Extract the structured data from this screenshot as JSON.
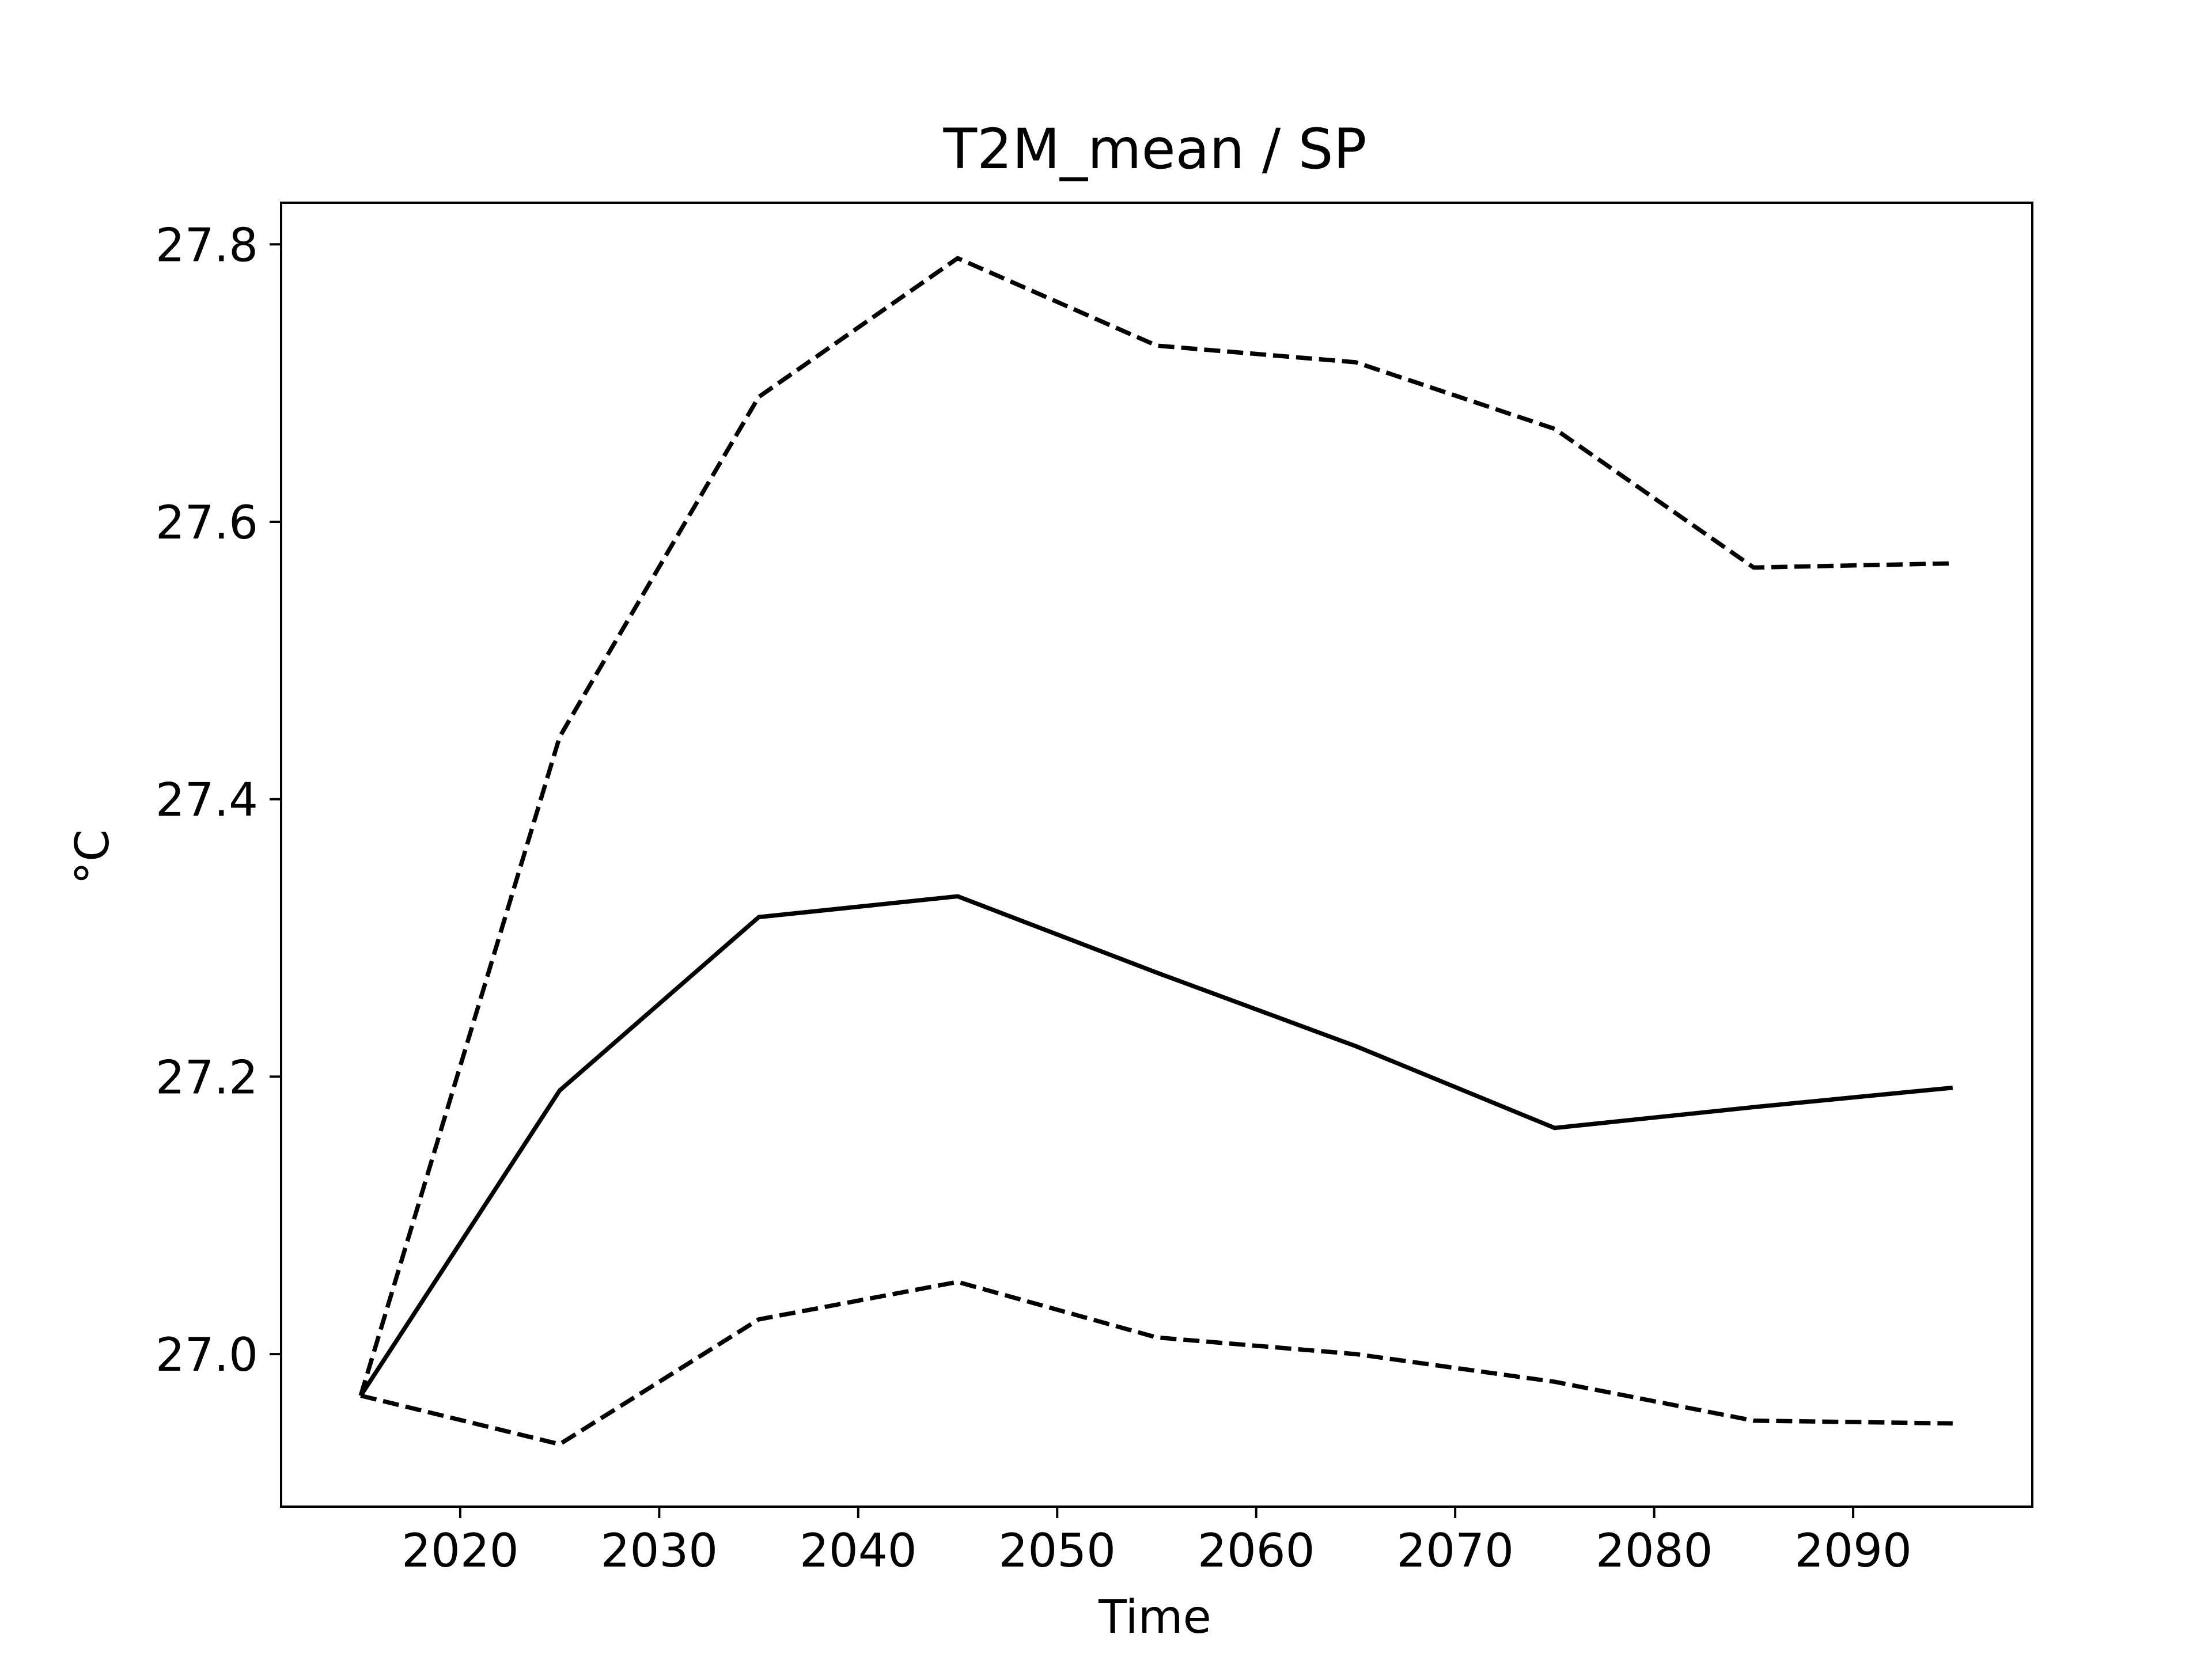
{
  "chart_data": {
    "type": "line",
    "title": "T2M_mean / SP",
    "xlabel": "Time",
    "ylabel": "°C",
    "xlim": [
      2011,
      2099
    ],
    "ylim": [
      26.89,
      27.83
    ],
    "xticks": [
      2020,
      2030,
      2040,
      2050,
      2060,
      2070,
      2080,
      2090
    ],
    "yticks": [
      27.0,
      27.2,
      27.4,
      27.6,
      27.8
    ],
    "ytick_labels": [
      "27.0",
      "27.2",
      "27.4",
      "27.6",
      "27.8"
    ],
    "grid": false,
    "x": [
      2015,
      2025,
      2035,
      2045,
      2055,
      2065,
      2075,
      2085,
      2095
    ],
    "series": [
      {
        "style": "solid",
        "color": "#000000",
        "values": [
          26.97,
          27.19,
          27.315,
          27.33,
          27.275,
          27.222,
          27.163,
          27.178,
          27.192
        ]
      },
      {
        "style": "dashed",
        "color": "#000000",
        "values": [
          26.97,
          27.445,
          27.69,
          27.79,
          27.727,
          27.715,
          27.667,
          27.567,
          27.57
        ]
      },
      {
        "style": "dashed",
        "color": "#000000",
        "values": [
          26.97,
          26.935,
          27.025,
          27.052,
          27.012,
          27.0,
          26.98,
          26.952,
          26.95
        ]
      }
    ]
  }
}
